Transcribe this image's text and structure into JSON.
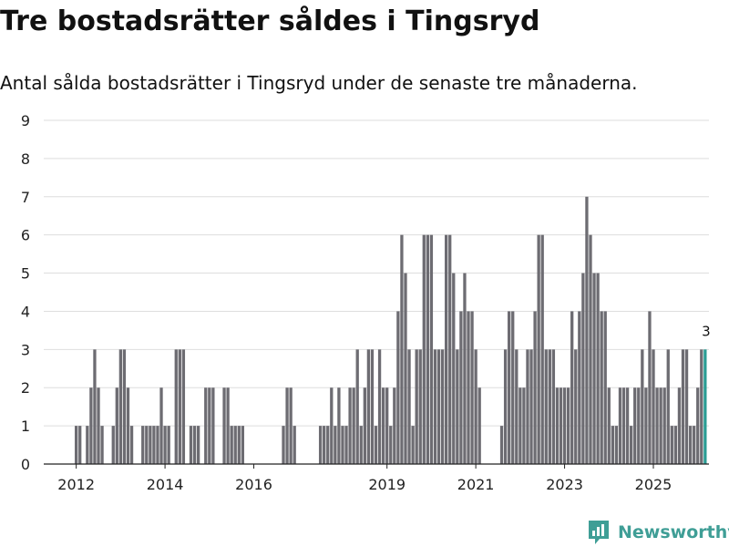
{
  "title": "Tre bostadsrätter såldes i Tingsryd",
  "subtitle": "Antal sålda bostadsrätter i Tingsryd under de senaste tre månaderna.",
  "brand": {
    "name": "Newsworthy",
    "icon": "newsworthy-logo-icon",
    "color": "#3f9e96"
  },
  "chart_data": {
    "type": "bar",
    "title": "Tre bostadsrätter såldes i Tingsryd",
    "xlabel": "",
    "ylabel": "",
    "ylim": [
      0,
      9
    ],
    "yticks": [
      "0",
      "1",
      "2",
      "3",
      "4",
      "5",
      "6",
      "7",
      "8",
      "9"
    ],
    "grid": true,
    "start_year": 2011,
    "start_month": 1,
    "xticks": [
      {
        "label": "2012",
        "index": 12
      },
      {
        "label": "2014",
        "index": 36
      },
      {
        "label": "2016",
        "index": 60
      },
      {
        "label": "2019",
        "index": 96
      },
      {
        "label": "2021",
        "index": 120
      },
      {
        "label": "2023",
        "index": 144
      },
      {
        "label": "2025",
        "index": 168
      }
    ],
    "bar_color": "#6d6c72",
    "highlight_color": "#2b9d94",
    "highlight_label": "3",
    "values": [
      0,
      0,
      0,
      0,
      0,
      0,
      0,
      0,
      0,
      0,
      0,
      0,
      1,
      1,
      0,
      1,
      2,
      3,
      2,
      1,
      0,
      0,
      1,
      2,
      3,
      3,
      2,
      1,
      0,
      0,
      1,
      1,
      1,
      1,
      1,
      2,
      1,
      1,
      0,
      3,
      3,
      3,
      0,
      1,
      1,
      1,
      0,
      2,
      2,
      2,
      0,
      0,
      2,
      2,
      1,
      1,
      1,
      1,
      0,
      0,
      0,
      0,
      0,
      0,
      0,
      0,
      0,
      0,
      1,
      2,
      2,
      1,
      0,
      0,
      0,
      0,
      0,
      0,
      1,
      1,
      1,
      2,
      1,
      2,
      1,
      1,
      2,
      2,
      3,
      1,
      2,
      3,
      3,
      1,
      3,
      2,
      2,
      1,
      2,
      4,
      6,
      5,
      3,
      1,
      3,
      3,
      6,
      6,
      6,
      3,
      3,
      3,
      6,
      6,
      5,
      3,
      4,
      5,
      4,
      4,
      3,
      2,
      0,
      0,
      0,
      0,
      0,
      1,
      3,
      4,
      4,
      3,
      2,
      2,
      3,
      3,
      4,
      6,
      6,
      3,
      3,
      3,
      2,
      2,
      2,
      2,
      4,
      3,
      4,
      5,
      7,
      6,
      5,
      5,
      4,
      4,
      2,
      1,
      1,
      2,
      2,
      2,
      1,
      2,
      2,
      3,
      2,
      4,
      3,
      2,
      2,
      2,
      3,
      1,
      1,
      2,
      3,
      3,
      1,
      1,
      2,
      3,
      3
    ]
  }
}
